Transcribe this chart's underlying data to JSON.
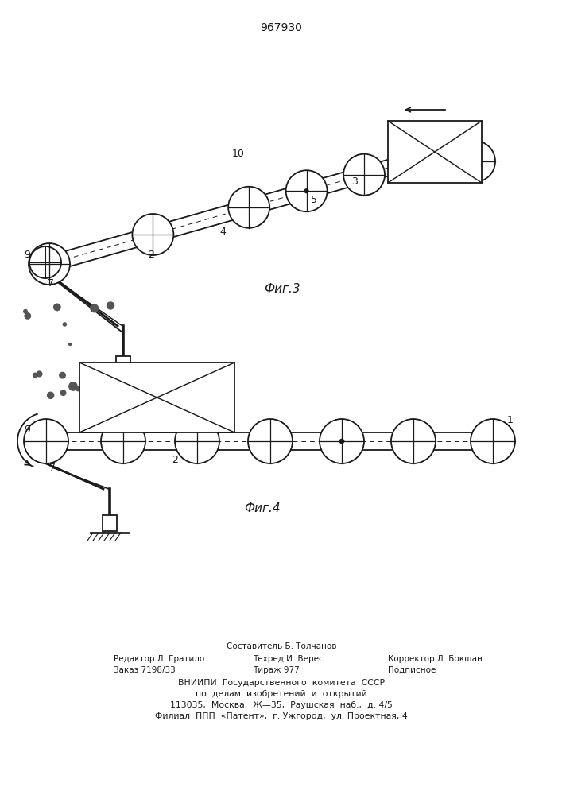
{
  "patent_number": "967930",
  "fig3_label": "Фиг.3",
  "fig4_label": "Фиг.4",
  "footer_line1": "Составитель Б. Толчанов",
  "footer_line2_left": "Редактор Л. Гратило",
  "footer_line2_mid": "Техред И. Верес",
  "footer_line2_right": "Корректор Л. Бокшан",
  "footer_line3_left": "Заказ 7198/33",
  "footer_line3_mid": "Тираж 977",
  "footer_line3_right": "Подписное",
  "footer_line4": "ВНИИПИ  Государственного  комитета  СССР",
  "footer_line5": "по  делам  изобретений  и  открытий",
  "footer_line6": "113035,  Москва,  Ж—35,  Раушская  наб.,  д. 4/5",
  "footer_line7": "Филиал  ППП  «Патент»,  г. Ужгород,  ул. Проектная, 4",
  "bg_color": "#ffffff",
  "line_color": "#1a1a1a"
}
